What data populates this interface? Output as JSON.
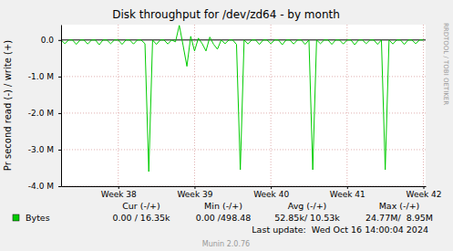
{
  "chart_data": {
    "type": "line",
    "title": "Disk throughput for /dev/zd64 - by month",
    "y_label": "Pr second read (-) / write (+)",
    "watermark": "RRDTOOL / TOBI OETIKER",
    "stats": {
      "headers": [
        "Cur (-/+)",
        "Min (-/+)",
        "Avg (-/+)",
        "Max (-/+)"
      ],
      "values": [
        "0.00 / 16.35k",
        "0.00 /498.48",
        "52.85k/ 10.53k",
        "24.77M/  8.95M"
      ]
    },
    "last_update": "Last update:  Wed Oct 16 14:00:04 2024",
    "footer": "Munin 2.0.76",
    "grid": true,
    "legend": "bottom",
    "xlim": [
      37.25,
      42.03
    ],
    "xticks": [
      {
        "value": 38,
        "label": "Week 38"
      },
      {
        "value": 39,
        "label": "Week 39"
      },
      {
        "value": 40,
        "label": "Week 40"
      },
      {
        "value": 41,
        "label": "Week 41"
      },
      {
        "value": 42,
        "label": "Week 42"
      }
    ],
    "ylim": [
      -4000000,
      420000
    ],
    "yticks": [
      {
        "value": 0,
        "label": "0.0"
      },
      {
        "value": -1000000,
        "label": "-1.0 M"
      },
      {
        "value": -2000000,
        "label": "-2.0 M"
      },
      {
        "value": -3000000,
        "label": "-3.0 M"
      },
      {
        "value": -4000000,
        "label": "-4.0 M"
      }
    ],
    "x": [
      37.25,
      37.3,
      37.35,
      37.4,
      37.45,
      37.5,
      37.55,
      37.6,
      37.65,
      37.7,
      37.75,
      37.8,
      37.85,
      37.9,
      37.95,
      38.0,
      38.05,
      38.1,
      38.15,
      38.2,
      38.25,
      38.3,
      38.35,
      38.4,
      38.45,
      38.5,
      38.55,
      38.6,
      38.65,
      38.7,
      38.75,
      38.8,
      38.85,
      38.9,
      38.95,
      39.0,
      39.05,
      39.1,
      39.15,
      39.2,
      39.25,
      39.3,
      39.35,
      39.4,
      39.45,
      39.5,
      39.55,
      39.6,
      39.65,
      39.7,
      39.75,
      39.8,
      39.85,
      39.9,
      39.95,
      40.0,
      40.05,
      40.1,
      40.15,
      40.2,
      40.25,
      40.3,
      40.35,
      40.4,
      40.45,
      40.5,
      40.55,
      40.6,
      40.65,
      40.7,
      40.75,
      40.8,
      40.85,
      40.9,
      40.95,
      41.0,
      41.05,
      41.1,
      41.15,
      41.2,
      41.25,
      41.3,
      41.35,
      41.4,
      41.45,
      41.5,
      41.55,
      41.6,
      41.65,
      41.7,
      41.75,
      41.8,
      41.85,
      41.9,
      41.95,
      42.0
    ],
    "series": [
      {
        "name": "Bytes",
        "color": "#00cc00",
        "values": [
          0,
          -100000,
          0,
          0,
          -120000,
          0,
          0,
          -110000,
          0,
          0,
          -130000,
          0,
          0,
          -100000,
          0,
          0,
          -120000,
          0,
          0,
          -110000,
          0,
          0,
          -100000,
          -3600000,
          0,
          -120000,
          0,
          0,
          -110000,
          0,
          -50000,
          400000,
          -150000,
          -720000,
          100000,
          -300000,
          50000,
          -100000,
          -300000,
          80000,
          -120000,
          -250000,
          0,
          -100000,
          0,
          0,
          -120000,
          -3550000,
          0,
          -110000,
          0,
          0,
          -120000,
          0,
          0,
          -100000,
          0,
          0,
          -130000,
          0,
          0,
          -110000,
          0,
          0,
          -120000,
          0,
          -3550000,
          0,
          -100000,
          0,
          0,
          -120000,
          0,
          0,
          -110000,
          0,
          0,
          -130000,
          0,
          0,
          -100000,
          0,
          0,
          -120000,
          0,
          -3550000,
          0,
          -110000,
          0,
          0,
          -120000,
          0,
          0,
          -100000,
          0,
          0
        ]
      }
    ]
  }
}
